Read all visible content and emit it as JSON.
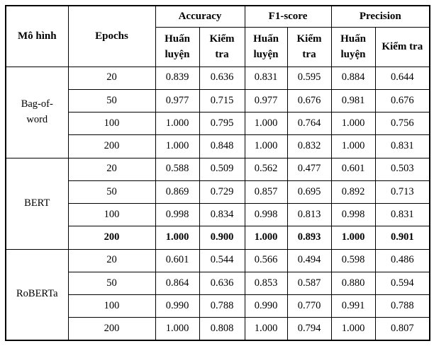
{
  "table": {
    "header": {
      "model_label": "Mô hình",
      "epochs_label": "Epochs",
      "metric_groups": [
        {
          "label": "Accuracy"
        },
        {
          "label": "F1-score"
        },
        {
          "label": "Precision"
        }
      ],
      "sub_labels": {
        "train": "Huấn luyện",
        "test": "Kiểm tra"
      }
    },
    "groups": [
      {
        "model": "Bag-of-word",
        "rows": [
          {
            "epochs": "20",
            "values": [
              "0.839",
              "0.636",
              "0.831",
              "0.595",
              "0.884",
              "0.644"
            ],
            "bold": false
          },
          {
            "epochs": "50",
            "values": [
              "0.977",
              "0.715",
              "0.977",
              "0.676",
              "0.981",
              "0.676"
            ],
            "bold": false
          },
          {
            "epochs": "100",
            "values": [
              "1.000",
              "0.795",
              "1.000",
              "0.764",
              "1.000",
              "0.756"
            ],
            "bold": false
          },
          {
            "epochs": "200",
            "values": [
              "1.000",
              "0.848",
              "1.000",
              "0.832",
              "1.000",
              "0.831"
            ],
            "bold": false
          }
        ]
      },
      {
        "model": "BERT",
        "rows": [
          {
            "epochs": "20",
            "values": [
              "0.588",
              "0.509",
              "0.562",
              "0.477",
              "0.601",
              "0.503"
            ],
            "bold": false
          },
          {
            "epochs": "50",
            "values": [
              "0.869",
              "0.729",
              "0.857",
              "0.695",
              "0.892",
              "0.713"
            ],
            "bold": false
          },
          {
            "epochs": "100",
            "values": [
              "0.998",
              "0.834",
              "0.998",
              "0.813",
              "0.998",
              "0.831"
            ],
            "bold": false
          },
          {
            "epochs": "200",
            "values": [
              "1.000",
              "0.900",
              "1.000",
              "0.893",
              "1.000",
              "0.901"
            ],
            "bold": true
          }
        ]
      },
      {
        "model": "RoBERTa",
        "rows": [
          {
            "epochs": "20",
            "values": [
              "0.601",
              "0.544",
              "0.566",
              "0.494",
              "0.598",
              "0.486"
            ],
            "bold": false
          },
          {
            "epochs": "50",
            "values": [
              "0.864",
              "0.636",
              "0.853",
              "0.587",
              "0.880",
              "0.594"
            ],
            "bold": false
          },
          {
            "epochs": "100",
            "values": [
              "0.990",
              "0.788",
              "0.990",
              "0.770",
              "0.991",
              "0.788"
            ],
            "bold": false
          },
          {
            "epochs": "200",
            "values": [
              "1.000",
              "0.808",
              "1.000",
              "0.794",
              "1.000",
              "0.807"
            ],
            "bold": false
          }
        ]
      }
    ]
  }
}
